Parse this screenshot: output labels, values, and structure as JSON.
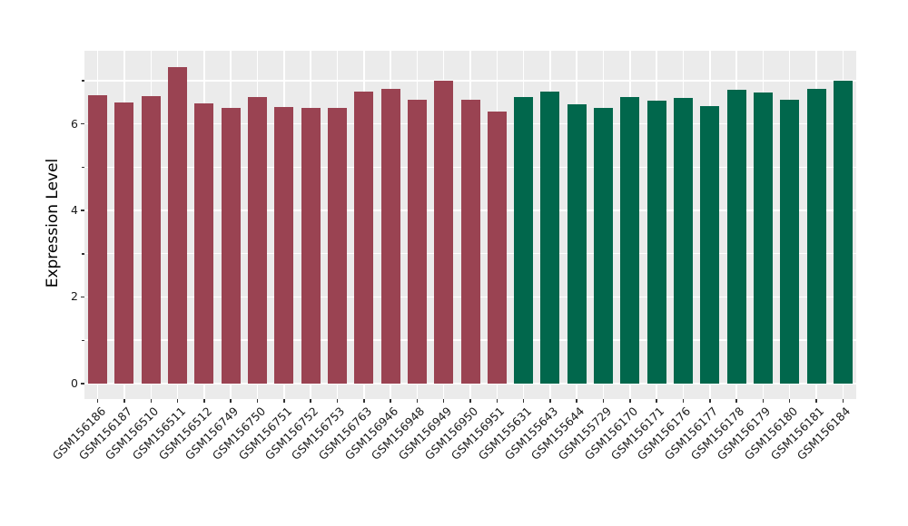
{
  "chart_data": {
    "type": "bar",
    "title": "",
    "xlabel": "",
    "ylabel": "Expression Level",
    "ylim": [
      -0.36,
      7.69
    ],
    "grid": "on",
    "legend_position": "none",
    "plot_bg_color": "#EBEBEB",
    "grid_color": "#FFFFFF",
    "tick_color": "#333333",
    "gridlines_y": [
      0,
      1,
      2,
      3,
      4,
      5,
      6,
      7
    ],
    "ytick_labeled_values": [
      0,
      2,
      4,
      6
    ],
    "ytick_labels": [
      "0",
      "2",
      "4",
      "6"
    ],
    "ytick_minor_values": [
      1,
      3,
      5,
      7
    ],
    "categories": [
      "GSM156186",
      "GSM156187",
      "GSM156510",
      "GSM156511",
      "GSM156512",
      "GSM156749",
      "GSM156750",
      "GSM156751",
      "GSM156752",
      "GSM156753",
      "GSM156763",
      "GSM156946",
      "GSM156948",
      "GSM156949",
      "GSM156950",
      "GSM156951",
      "GSM155631",
      "GSM155643",
      "GSM155644",
      "GSM155729",
      "GSM156170",
      "GSM156171",
      "GSM156176",
      "GSM156177",
      "GSM156178",
      "GSM156179",
      "GSM156180",
      "GSM156181",
      "GSM156184"
    ],
    "values": [
      6.66,
      6.49,
      6.64,
      7.31,
      6.47,
      6.37,
      6.63,
      6.4,
      6.36,
      6.37,
      6.74,
      6.81,
      6.55,
      7.0,
      6.55,
      6.29,
      6.62,
      6.74,
      6.46,
      6.37,
      6.62,
      6.53,
      6.6,
      6.41,
      6.79,
      6.72,
      6.56,
      6.8,
      7.0
    ],
    "groups": [
      "g1",
      "g1",
      "g1",
      "g1",
      "g1",
      "g1",
      "g1",
      "g1",
      "g1",
      "g1",
      "g1",
      "g1",
      "g1",
      "g1",
      "g1",
      "g1",
      "g2",
      "g2",
      "g2",
      "g2",
      "g2",
      "g2",
      "g2",
      "g2",
      "g2",
      "g2",
      "g2",
      "g2",
      "g2"
    ],
    "group_colors": {
      "g1": "#9A4352",
      "g2": "#01674C"
    }
  }
}
